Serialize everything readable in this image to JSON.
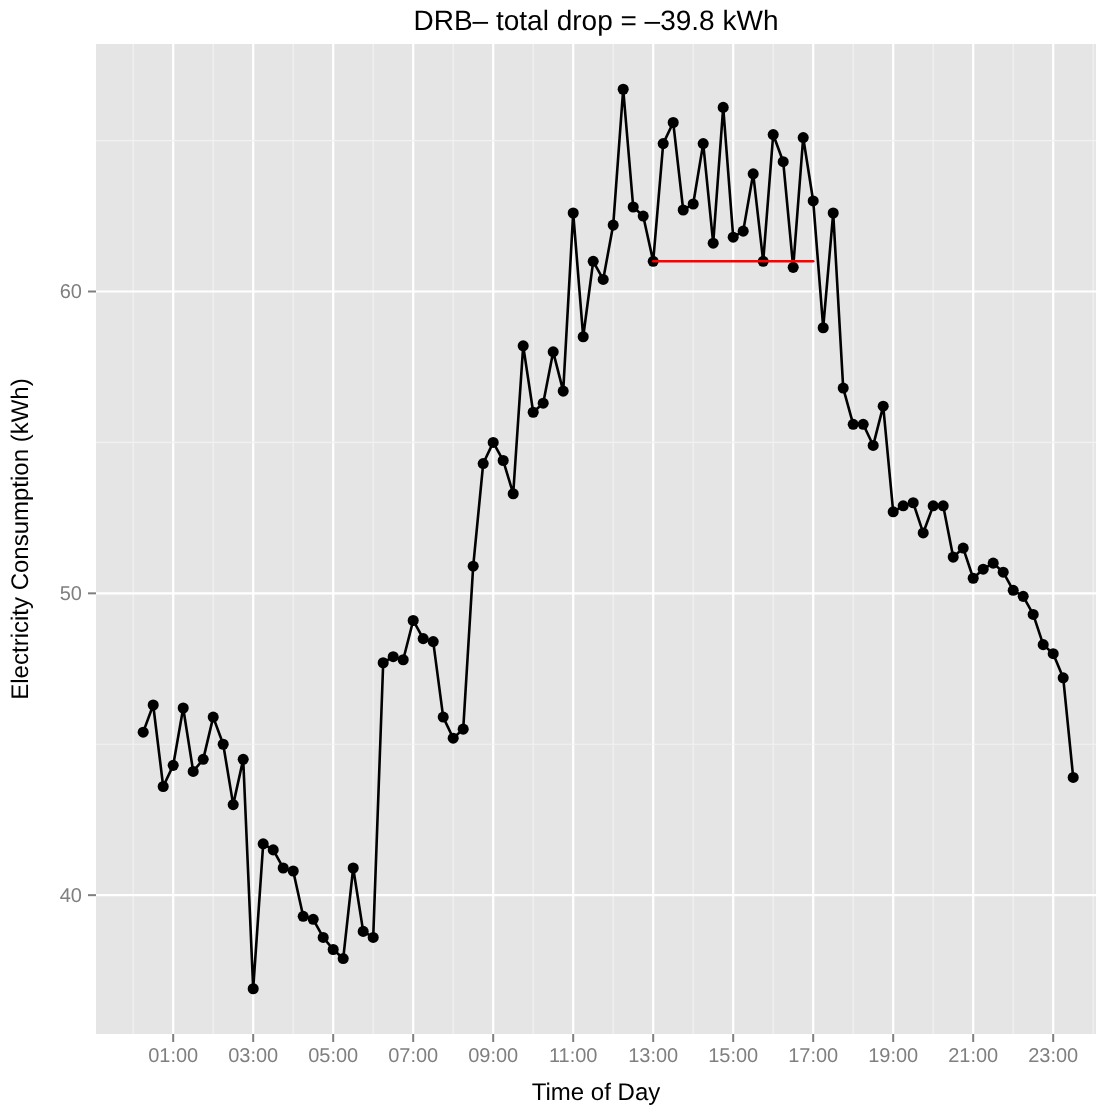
{
  "chart_data": {
    "type": "line",
    "title": "DRB– total drop = –39.8 kWh",
    "xlabel": "Time of Day",
    "ylabel": "Electricity Consumption (kWh)",
    "xlim": [
      -0.93,
      24.07
    ],
    "ylim": [
      35.4,
      68.2
    ],
    "xticks": [
      {
        "value": 1,
        "label": "01:00"
      },
      {
        "value": 3,
        "label": "03:00"
      },
      {
        "value": 5,
        "label": "05:00"
      },
      {
        "value": 7,
        "label": "07:00"
      },
      {
        "value": 9,
        "label": "09:00"
      },
      {
        "value": 11,
        "label": "11:00"
      },
      {
        "value": 13,
        "label": "13:00"
      },
      {
        "value": 15,
        "label": "15:00"
      },
      {
        "value": 17,
        "label": "17:00"
      },
      {
        "value": 19,
        "label": "19:00"
      },
      {
        "value": 21,
        "label": "21:00"
      },
      {
        "value": 23,
        "label": "23:00"
      }
    ],
    "yticks": [
      40,
      50,
      60
    ],
    "grid": true,
    "marker": "circle",
    "line_style": "solid",
    "series": [
      {
        "color": "#000000",
        "x": [
          0.25,
          0.5,
          0.75,
          1,
          1.25,
          1.5,
          1.75,
          2,
          2.25,
          2.5,
          2.75,
          3,
          3.25,
          3.5,
          3.75,
          4,
          4.25,
          4.5,
          4.75,
          5,
          5.25,
          5.5,
          5.75,
          6,
          6.25,
          6.5,
          6.75,
          7,
          7.25,
          7.5,
          7.75,
          8,
          8.25,
          8.5,
          8.75,
          9,
          9.25,
          9.5,
          9.75,
          10,
          10.25,
          10.5,
          10.75,
          11,
          11.25,
          11.5,
          11.75,
          12,
          12.25,
          12.5,
          12.75,
          13,
          13.25,
          13.5,
          13.75,
          14,
          14.25,
          14.5,
          14.75,
          15,
          15.25,
          15.5,
          15.75,
          16,
          16.25,
          16.5,
          16.75,
          17,
          17.25,
          17.5,
          17.75,
          18,
          18.25,
          18.5,
          18.75,
          19,
          19.25,
          19.5,
          19.75,
          20,
          20.25,
          20.5,
          20.75,
          21,
          21.25,
          21.5,
          21.75,
          22,
          22.25,
          22.5,
          22.75,
          23,
          23.25,
          23.5
        ],
        "values": [
          45.4,
          46.3,
          43.6,
          44.3,
          46.2,
          44.1,
          44.5,
          45.9,
          45.0,
          43.0,
          44.5,
          36.9,
          41.7,
          41.5,
          40.9,
          40.8,
          39.3,
          39.2,
          38.6,
          38.2,
          37.9,
          40.9,
          38.8,
          38.6,
          47.7,
          47.9,
          47.8,
          49.1,
          48.5,
          48.4,
          45.9,
          45.2,
          45.5,
          50.9,
          54.3,
          55.0,
          54.4,
          53.3,
          58.2,
          56.0,
          56.3,
          58.0,
          56.7,
          62.6,
          58.5,
          61.0,
          60.4,
          62.2,
          66.7,
          62.8,
          62.5,
          61.0,
          64.9,
          65.6,
          62.7,
          62.9,
          64.9,
          61.6,
          66.1,
          61.8,
          62.0,
          63.9,
          61.0,
          65.2,
          64.3,
          60.8,
          65.1,
          63.0,
          58.8,
          62.6,
          56.8,
          55.6,
          55.6,
          54.9,
          56.2,
          52.7,
          52.9,
          53.0,
          52.0,
          52.9,
          52.9,
          51.2,
          51.5,
          50.5,
          50.8,
          51.0,
          50.7,
          50.1,
          49.9,
          49.3,
          48.3,
          48.0,
          47.2,
          43.9
        ]
      },
      {
        "color": "#ff0000",
        "x": [
          13,
          17
        ],
        "values": [
          61.0,
          61.0
        ],
        "marker": "none"
      }
    ]
  }
}
